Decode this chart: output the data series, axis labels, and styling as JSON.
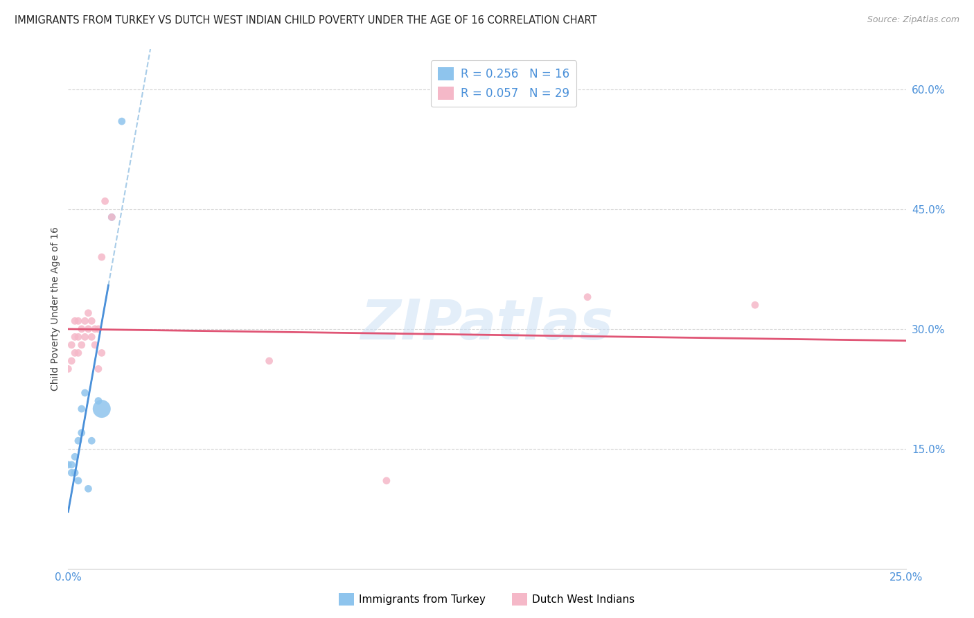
{
  "title": "IMMIGRANTS FROM TURKEY VS DUTCH WEST INDIAN CHILD POVERTY UNDER THE AGE OF 16 CORRELATION CHART",
  "source": "Source: ZipAtlas.com",
  "ylabel": "Child Poverty Under the Age of 16",
  "R1": "0.256",
  "N1": "16",
  "R2": "0.057",
  "N2": "29",
  "color_blue": "#8ec4ed",
  "color_pink": "#f5b8c8",
  "color_blue_line": "#4a90d9",
  "color_pink_line": "#e05575",
  "color_dashed": "#a8cce8",
  "background_color": "#ffffff",
  "grid_color": "#d8d8d8",
  "x_min": 0.0,
  "x_max": 0.25,
  "y_min": 0.0,
  "y_max": 0.65,
  "turkey_x": [
    0.0,
    0.001,
    0.001,
    0.002,
    0.002,
    0.003,
    0.003,
    0.004,
    0.004,
    0.005,
    0.006,
    0.007,
    0.009,
    0.01,
    0.013,
    0.016
  ],
  "turkey_y": [
    0.13,
    0.13,
    0.12,
    0.12,
    0.14,
    0.16,
    0.11,
    0.17,
    0.2,
    0.22,
    0.1,
    0.16,
    0.21,
    0.2,
    0.44,
    0.56
  ],
  "turkey_sizes": [
    60,
    60,
    60,
    60,
    60,
    60,
    60,
    60,
    60,
    60,
    60,
    60,
    60,
    350,
    60,
    60
  ],
  "dwi_x": [
    0.0,
    0.001,
    0.001,
    0.002,
    0.002,
    0.002,
    0.003,
    0.003,
    0.003,
    0.004,
    0.004,
    0.005,
    0.005,
    0.006,
    0.006,
    0.007,
    0.007,
    0.008,
    0.008,
    0.009,
    0.009,
    0.01,
    0.01,
    0.011,
    0.013,
    0.06,
    0.095,
    0.155,
    0.205
  ],
  "dwi_y": [
    0.25,
    0.26,
    0.28,
    0.27,
    0.29,
    0.31,
    0.27,
    0.29,
    0.31,
    0.28,
    0.3,
    0.29,
    0.31,
    0.3,
    0.32,
    0.29,
    0.31,
    0.3,
    0.28,
    0.25,
    0.3,
    0.39,
    0.27,
    0.46,
    0.44,
    0.26,
    0.11,
    0.34,
    0.33
  ],
  "dwi_sizes": [
    60,
    60,
    60,
    60,
    60,
    60,
    60,
    60,
    60,
    60,
    60,
    60,
    60,
    60,
    60,
    60,
    60,
    60,
    60,
    60,
    60,
    60,
    60,
    60,
    60,
    60,
    60,
    60,
    60
  ],
  "ytick_positions": [
    0.15,
    0.3,
    0.45,
    0.6
  ],
  "ytick_labels": [
    "15.0%",
    "30.0%",
    "45.0%",
    "60.0%"
  ]
}
